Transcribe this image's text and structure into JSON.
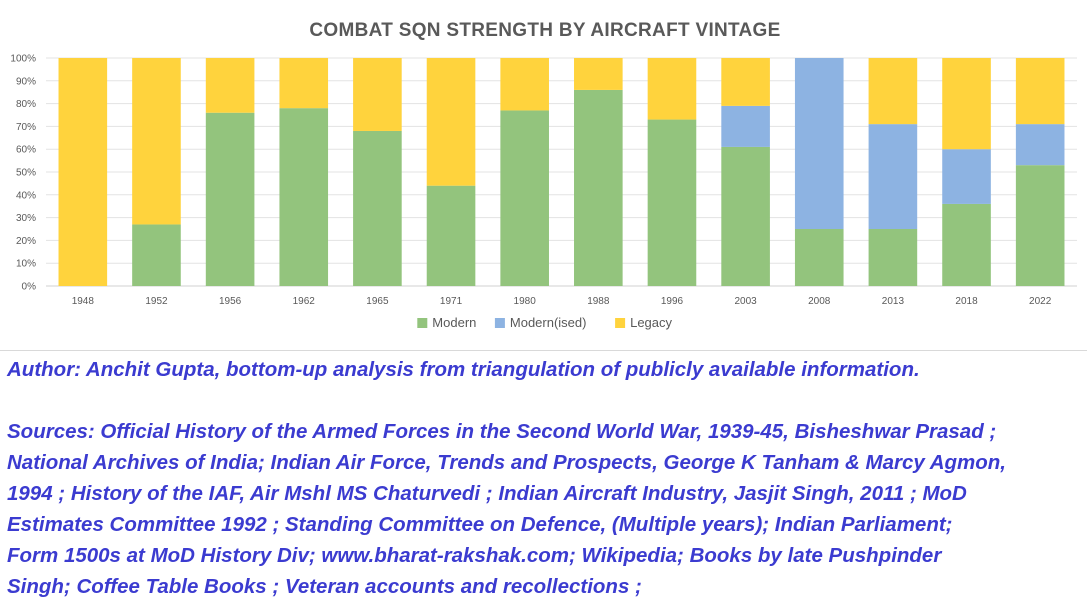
{
  "chart_data": {
    "type": "bar",
    "stacked": true,
    "title": "COMBAT SQN STRENGTH BY AIRCRAFT VINTAGE",
    "categories": [
      "1948",
      "1952",
      "1956",
      "1962",
      "1965",
      "1971",
      "1980",
      "1988",
      "1996",
      "2003",
      "2008",
      "2013",
      "2018",
      "2022"
    ],
    "series": [
      {
        "name": "Modern",
        "color": "#93c47d",
        "values": [
          0,
          27,
          76,
          78,
          68,
          44,
          77,
          86,
          73,
          61,
          25,
          25,
          36,
          53
        ]
      },
      {
        "name": "Modern(ised)",
        "color": "#8db3e2",
        "values": [
          0,
          0,
          0,
          0,
          0,
          0,
          0,
          0,
          0,
          18,
          75,
          46,
          24,
          18
        ]
      },
      {
        "name": "Legacy",
        "color": "#ffd33d",
        "values": [
          100,
          73,
          24,
          22,
          32,
          56,
          23,
          14,
          27,
          21,
          0,
          29,
          40,
          29
        ]
      }
    ],
    "yticks": [
      "0%",
      "10%",
      "20%",
      "30%",
      "40%",
      "50%",
      "60%",
      "70%",
      "80%",
      "90%",
      "100%"
    ],
    "ylim": [
      0,
      100
    ],
    "xlabel": "",
    "ylabel": "",
    "grid": true,
    "legend": "bottom"
  },
  "notes": {
    "author": "Author: Anchit Gupta, bottom-up analysis from triangulation of publicly available information.",
    "sources_lines": [
      "Sources: Official History of the Armed Forces in the Second World War, 1939-45, Bisheshwar Prasad ;",
      "National Archives of India; Indian Air Force, Trends and Prospects, George K Tanham & Marcy Agmon,",
      "1994 ; History of the IAF, Air Mshl MS Chaturvedi ; Indian Aircraft Industry, Jasjit Singh, 2011 ; MoD",
      "Estimates Committee 1992 ;  Standing Committee on Defence, (Multiple years); Indian Parliament;",
      "Form 1500s at MoD History Div; www.bharat-rakshak.com; Wikipedia; Books by late Pushpinder",
      "Singh; Coffee Table Books ; Veteran accounts and recollections ;"
    ]
  }
}
